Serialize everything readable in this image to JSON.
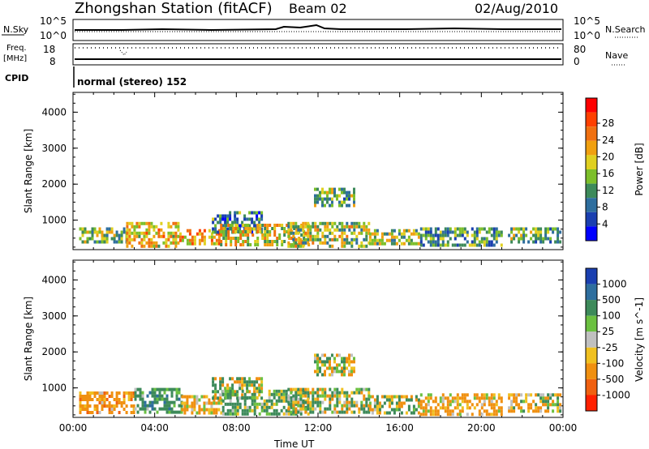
{
  "header": {
    "station": "Zhongshan Station (fitACF)",
    "beam": "Beam 02",
    "date": "02/Aug/2010"
  },
  "status_panels": {
    "nsky_label": "N.Sky",
    "nsky_ticks": [
      "10^5",
      "10^0"
    ],
    "nsearch_label": "N.Search",
    "nsearch_ticks": [
      "10^5",
      "10^0"
    ],
    "freq_label": "Freq.",
    "freq_unit": "[MHz]",
    "freq_ticks": [
      "18",
      "8"
    ],
    "nave_label": "Nave",
    "nave_ticks": [
      "80",
      "0"
    ],
    "cpid_label": "CPID",
    "cpid_value": "normal (stereo) 152"
  },
  "chart_data": [
    {
      "type": "heatmap",
      "name": "power",
      "ylabel": "Slant Range [km]",
      "xlabel": "",
      "ylim": [
        180,
        4550
      ],
      "yticks": [
        "1000",
        "2000",
        "3000",
        "4000"
      ],
      "colorbar": {
        "label": "Power [dB]",
        "ticks": [
          "4",
          "8",
          "12",
          "16",
          "20",
          "24",
          "28"
        ],
        "colors": [
          "#0000ff",
          "#1a3fb0",
          "#2e6e9e",
          "#3d8a5a",
          "#7cbf2a",
          "#e0d020",
          "#f0a010",
          "#f07010",
          "#ff4000",
          "#ff0000"
        ]
      },
      "clusters": [
        {
          "t0": 0.3,
          "t1": 2.6,
          "r0": 350,
          "r1": 800,
          "v": 14
        },
        {
          "t0": 2.6,
          "t1": 5.2,
          "r0": 300,
          "r1": 950,
          "v": 18
        },
        {
          "t0": 5.2,
          "t1": 7.2,
          "r0": 300,
          "r1": 750,
          "v": 20
        },
        {
          "t0": 6.8,
          "t1": 9.2,
          "r0": 650,
          "r1": 1250,
          "v": 9
        },
        {
          "t0": 7.2,
          "t1": 11.5,
          "r0": 300,
          "r1": 900,
          "v": 17
        },
        {
          "t0": 11.8,
          "t1": 13.8,
          "r0": 1400,
          "r1": 1900,
          "v": 12
        },
        {
          "t0": 10.5,
          "t1": 14.5,
          "r0": 300,
          "r1": 950,
          "v": 15
        },
        {
          "t0": 14.5,
          "t1": 17.0,
          "r0": 300,
          "r1": 750,
          "v": 14
        },
        {
          "t0": 17.0,
          "t1": 21.0,
          "r0": 300,
          "r1": 800,
          "v": 10
        },
        {
          "t0": 21.3,
          "t1": 23.9,
          "r0": 350,
          "r1": 800,
          "v": 12
        }
      ]
    },
    {
      "type": "heatmap",
      "name": "velocity",
      "ylabel": "Slant Range [km]",
      "xlabel": "Time UT",
      "xticks": [
        "00:00",
        "04:00",
        "08:00",
        "12:00",
        "16:00",
        "20:00",
        "00:00"
      ],
      "ylim": [
        180,
        4550
      ],
      "yticks": [
        "1000",
        "2000",
        "3000",
        "4000"
      ],
      "colorbar": {
        "label": "Velocity [m s^-1]",
        "ticks": [
          "1000",
          "500",
          "100",
          "25",
          "-25",
          "-100",
          "-500",
          "-1000"
        ],
        "colors": [
          "#1a3fb0",
          "#2e6e9e",
          "#3d8a5a",
          "#6bc040",
          "#c0c0c0",
          "#f0c020",
          "#f09010",
          "#f06010",
          "#ff2000"
        ]
      },
      "clusters": [
        {
          "t0": 0.3,
          "t1": 3.0,
          "r0": 350,
          "r1": 900,
          "v": -300
        },
        {
          "t0": 3.0,
          "t1": 5.3,
          "r0": 300,
          "r1": 1000,
          "v": 300
        },
        {
          "t0": 5.3,
          "t1": 7.3,
          "r0": 300,
          "r1": 800,
          "v": -200
        },
        {
          "t0": 6.8,
          "t1": 9.3,
          "r0": 700,
          "r1": 1300,
          "v": 60
        },
        {
          "t0": 7.3,
          "t1": 11.5,
          "r0": 300,
          "r1": 950,
          "v": 200
        },
        {
          "t0": 11.8,
          "t1": 13.8,
          "r0": 1400,
          "r1": 1950,
          "v": 0
        },
        {
          "t0": 10.5,
          "t1": 14.5,
          "r0": 300,
          "r1": 1000,
          "v": 80
        },
        {
          "t0": 14.5,
          "t1": 17.0,
          "r0": 300,
          "r1": 800,
          "v": 50
        },
        {
          "t0": 17.0,
          "t1": 21.0,
          "r0": 300,
          "r1": 850,
          "v": -200
        },
        {
          "t0": 21.3,
          "t1": 23.9,
          "r0": 350,
          "r1": 850,
          "v": -100
        }
      ]
    }
  ]
}
